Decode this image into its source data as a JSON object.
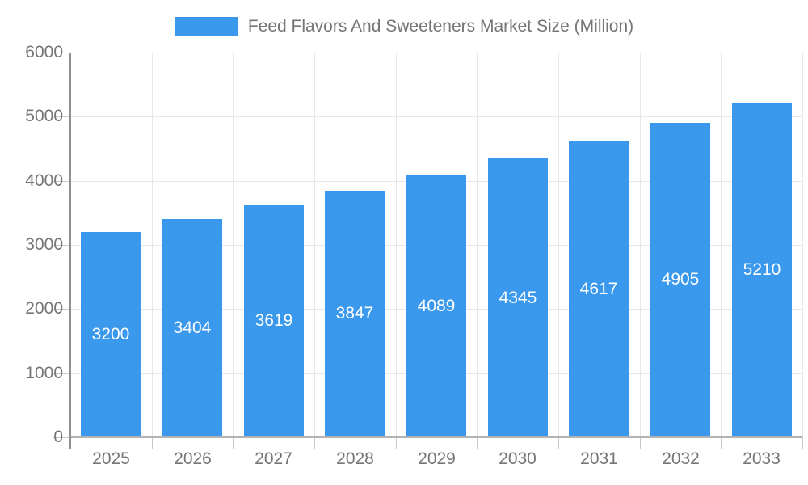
{
  "chart_data": {
    "type": "bar",
    "title": "Feed Flavors And Sweeteners Market Size (Million)",
    "categories": [
      "2025",
      "2026",
      "2027",
      "2028",
      "2029",
      "2030",
      "2031",
      "2032",
      "2033"
    ],
    "values": [
      3200,
      3404,
      3619,
      3847,
      4089,
      4345,
      4617,
      4905,
      5210
    ],
    "series_name": "Feed Flavors And Sweeteners Market Size (Million)",
    "xlabel": "",
    "ylabel": "",
    "ylim": [
      0,
      6000
    ],
    "yticks": [
      0,
      1000,
      2000,
      3000,
      4000,
      5000,
      6000
    ],
    "grid": true,
    "legend_position": "top-center",
    "value_labels_position": "inside-center",
    "colors": {
      "bar": "#3a99ec",
      "value_label": "#ffffff",
      "axis_text": "#757575",
      "title_text": "#757575",
      "gridline": "#e7e7e7",
      "baseline": "#b3b3b3",
      "axis_line": "#8f8f8f",
      "tick": "#c9c9c9"
    }
  }
}
